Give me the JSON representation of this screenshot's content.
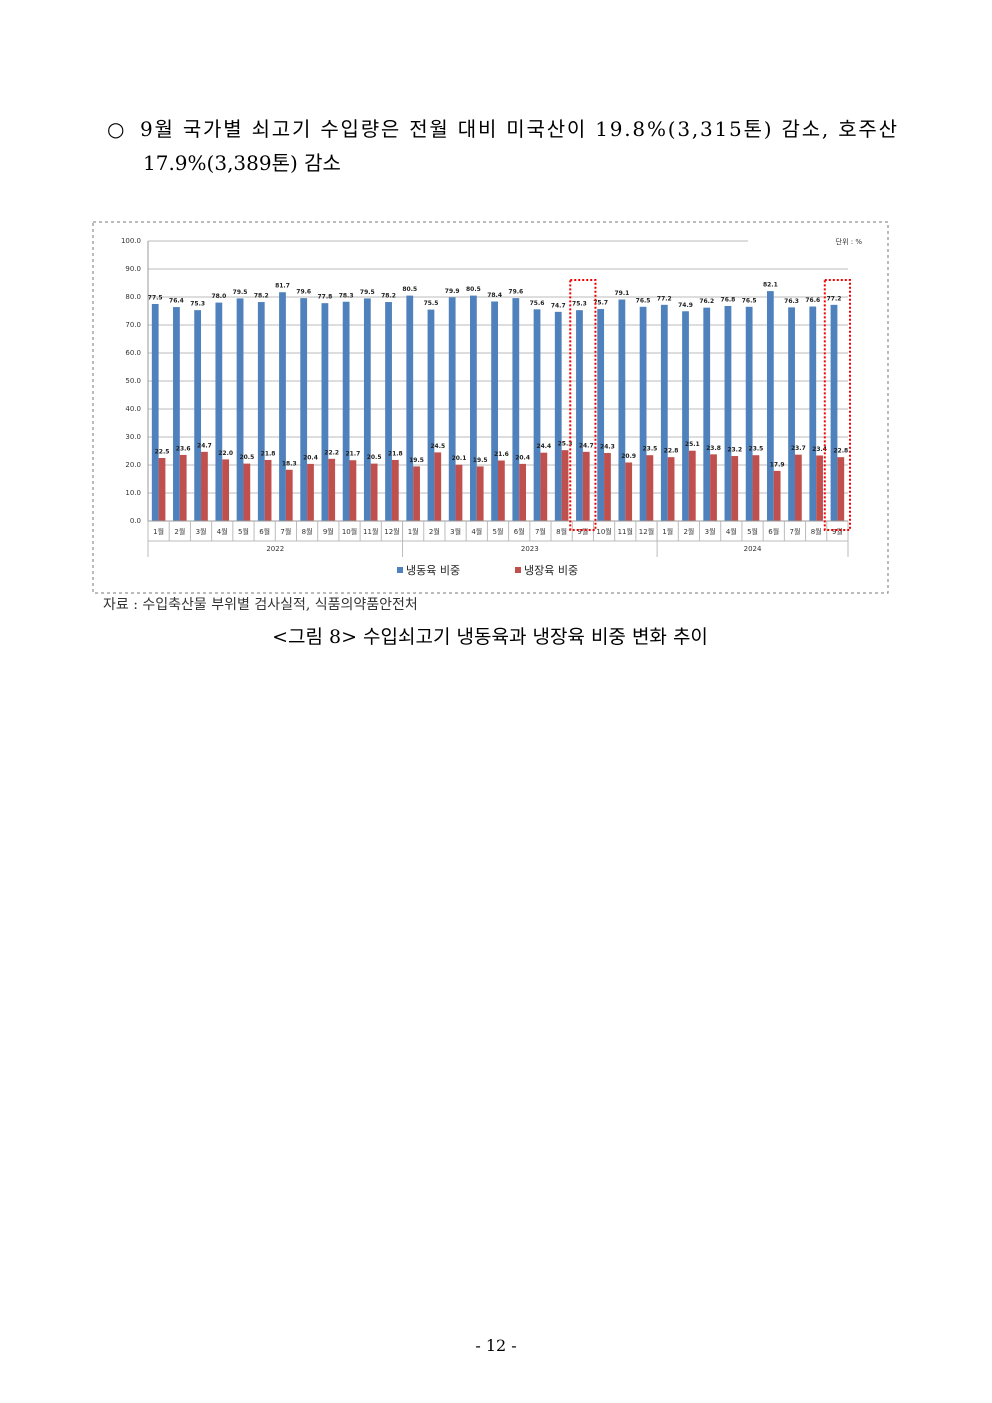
{
  "document": {
    "bullet": "○",
    "paragraph_lines": [
      "9월 국가별 쇠고기 수입량은 전월 대비 미국산이 19.8%(3,315톤) 감소, 호주산",
      "17.9%(3,389톤) 감소"
    ],
    "source": "자료 : 수입축산물 부위별 검사실적, 식품의약품안전처",
    "caption": "<그림 8> 수입쇠고기 냉동육과 냉장육 비중 변화 추이",
    "page_number": "- 12 -"
  },
  "chart_data": {
    "type": "bar",
    "unit_label": "단위 : %",
    "categories": [
      "1월",
      "2월",
      "3월",
      "4월",
      "5월",
      "6월",
      "7월",
      "8월",
      "9월",
      "10월",
      "11월",
      "12월",
      "1월",
      "2월",
      "3월",
      "4월",
      "5월",
      "6월",
      "7월",
      "8월",
      "9월",
      "10월",
      "11월",
      "12월",
      "1월",
      "2월",
      "3월",
      "4월",
      "5월",
      "6월",
      "7월",
      "8월",
      "9월"
    ],
    "x_groups": [
      "2022",
      "2023",
      "2024"
    ],
    "series": [
      {
        "name": "냉동육 비중",
        "color": "#4f81bd",
        "values": [
          77.5,
          76.4,
          75.3,
          78.0,
          79.5,
          78.2,
          81.7,
          79.6,
          77.8,
          78.3,
          79.5,
          78.2,
          80.5,
          75.5,
          79.9,
          80.5,
          78.4,
          79.6,
          75.6,
          74.7,
          75.3,
          75.7,
          79.1,
          76.5,
          77.2,
          74.9,
          76.2,
          76.8,
          76.5,
          82.1,
          76.3,
          76.6,
          77.2
        ],
        "value_labels": [
          "77.5",
          "76.4",
          "75.3",
          "78.0",
          "79.5",
          "78.2",
          "81.7",
          "79.6",
          "77.8",
          "78.3",
          "79.5",
          "78.2",
          "80.5",
          "75.5",
          "79.9",
          "80.5",
          "78.4",
          "79.6",
          "75.6",
          "74.7",
          "75.3",
          "75.7",
          "79.1",
          "76.5",
          "77.2",
          "74.9",
          "76.2",
          "76.8",
          "76.5",
          "82.1",
          "76.3",
          "76.6",
          "77.2"
        ]
      },
      {
        "name": "냉장육 비중",
        "color": "#c0504d",
        "values": [
          22.5,
          23.6,
          24.7,
          22.0,
          20.5,
          21.8,
          18.3,
          20.4,
          22.2,
          21.7,
          20.5,
          21.8,
          19.5,
          24.5,
          20.1,
          19.5,
          21.6,
          20.4,
          24.4,
          25.3,
          24.7,
          24.3,
          20.9,
          23.5,
          22.8,
          25.1,
          23.8,
          23.2,
          23.5,
          17.9,
          23.7,
          23.4,
          22.8
        ],
        "value_labels": [
          "22.5",
          "23.6",
          "24.7",
          "22.0",
          "20.5",
          "21.8",
          "18.3",
          "20.4",
          "22.2",
          "21.7",
          "20.5",
          "21.8",
          "19.5",
          "24.5",
          "20.1",
          "19.5",
          "21.6",
          "20.4",
          "24.4",
          "25.3",
          "24.7",
          "24.3",
          "20.9",
          "23.5",
          "22.8",
          "25.1",
          "23.8",
          "23.2",
          "23.5",
          "17.9",
          "23.7",
          "23.4",
          "22.8"
        ]
      }
    ],
    "ylim": [
      0,
      100
    ],
    "yticks": [
      {
        "value": 0,
        "label": "0.0"
      },
      {
        "value": 10,
        "label": "10.0"
      },
      {
        "value": 20,
        "label": "20.0"
      },
      {
        "value": 30,
        "label": "30.0"
      },
      {
        "value": 40,
        "label": "40.0"
      },
      {
        "value": 50,
        "label": "50.0"
      },
      {
        "value": 60,
        "label": "60.0"
      },
      {
        "value": 70,
        "label": "70.0"
      },
      {
        "value": 80,
        "label": "80.0"
      },
      {
        "value": 90,
        "label": "90.0"
      },
      {
        "value": 100,
        "label": "100.0"
      }
    ],
    "grid": true
  }
}
